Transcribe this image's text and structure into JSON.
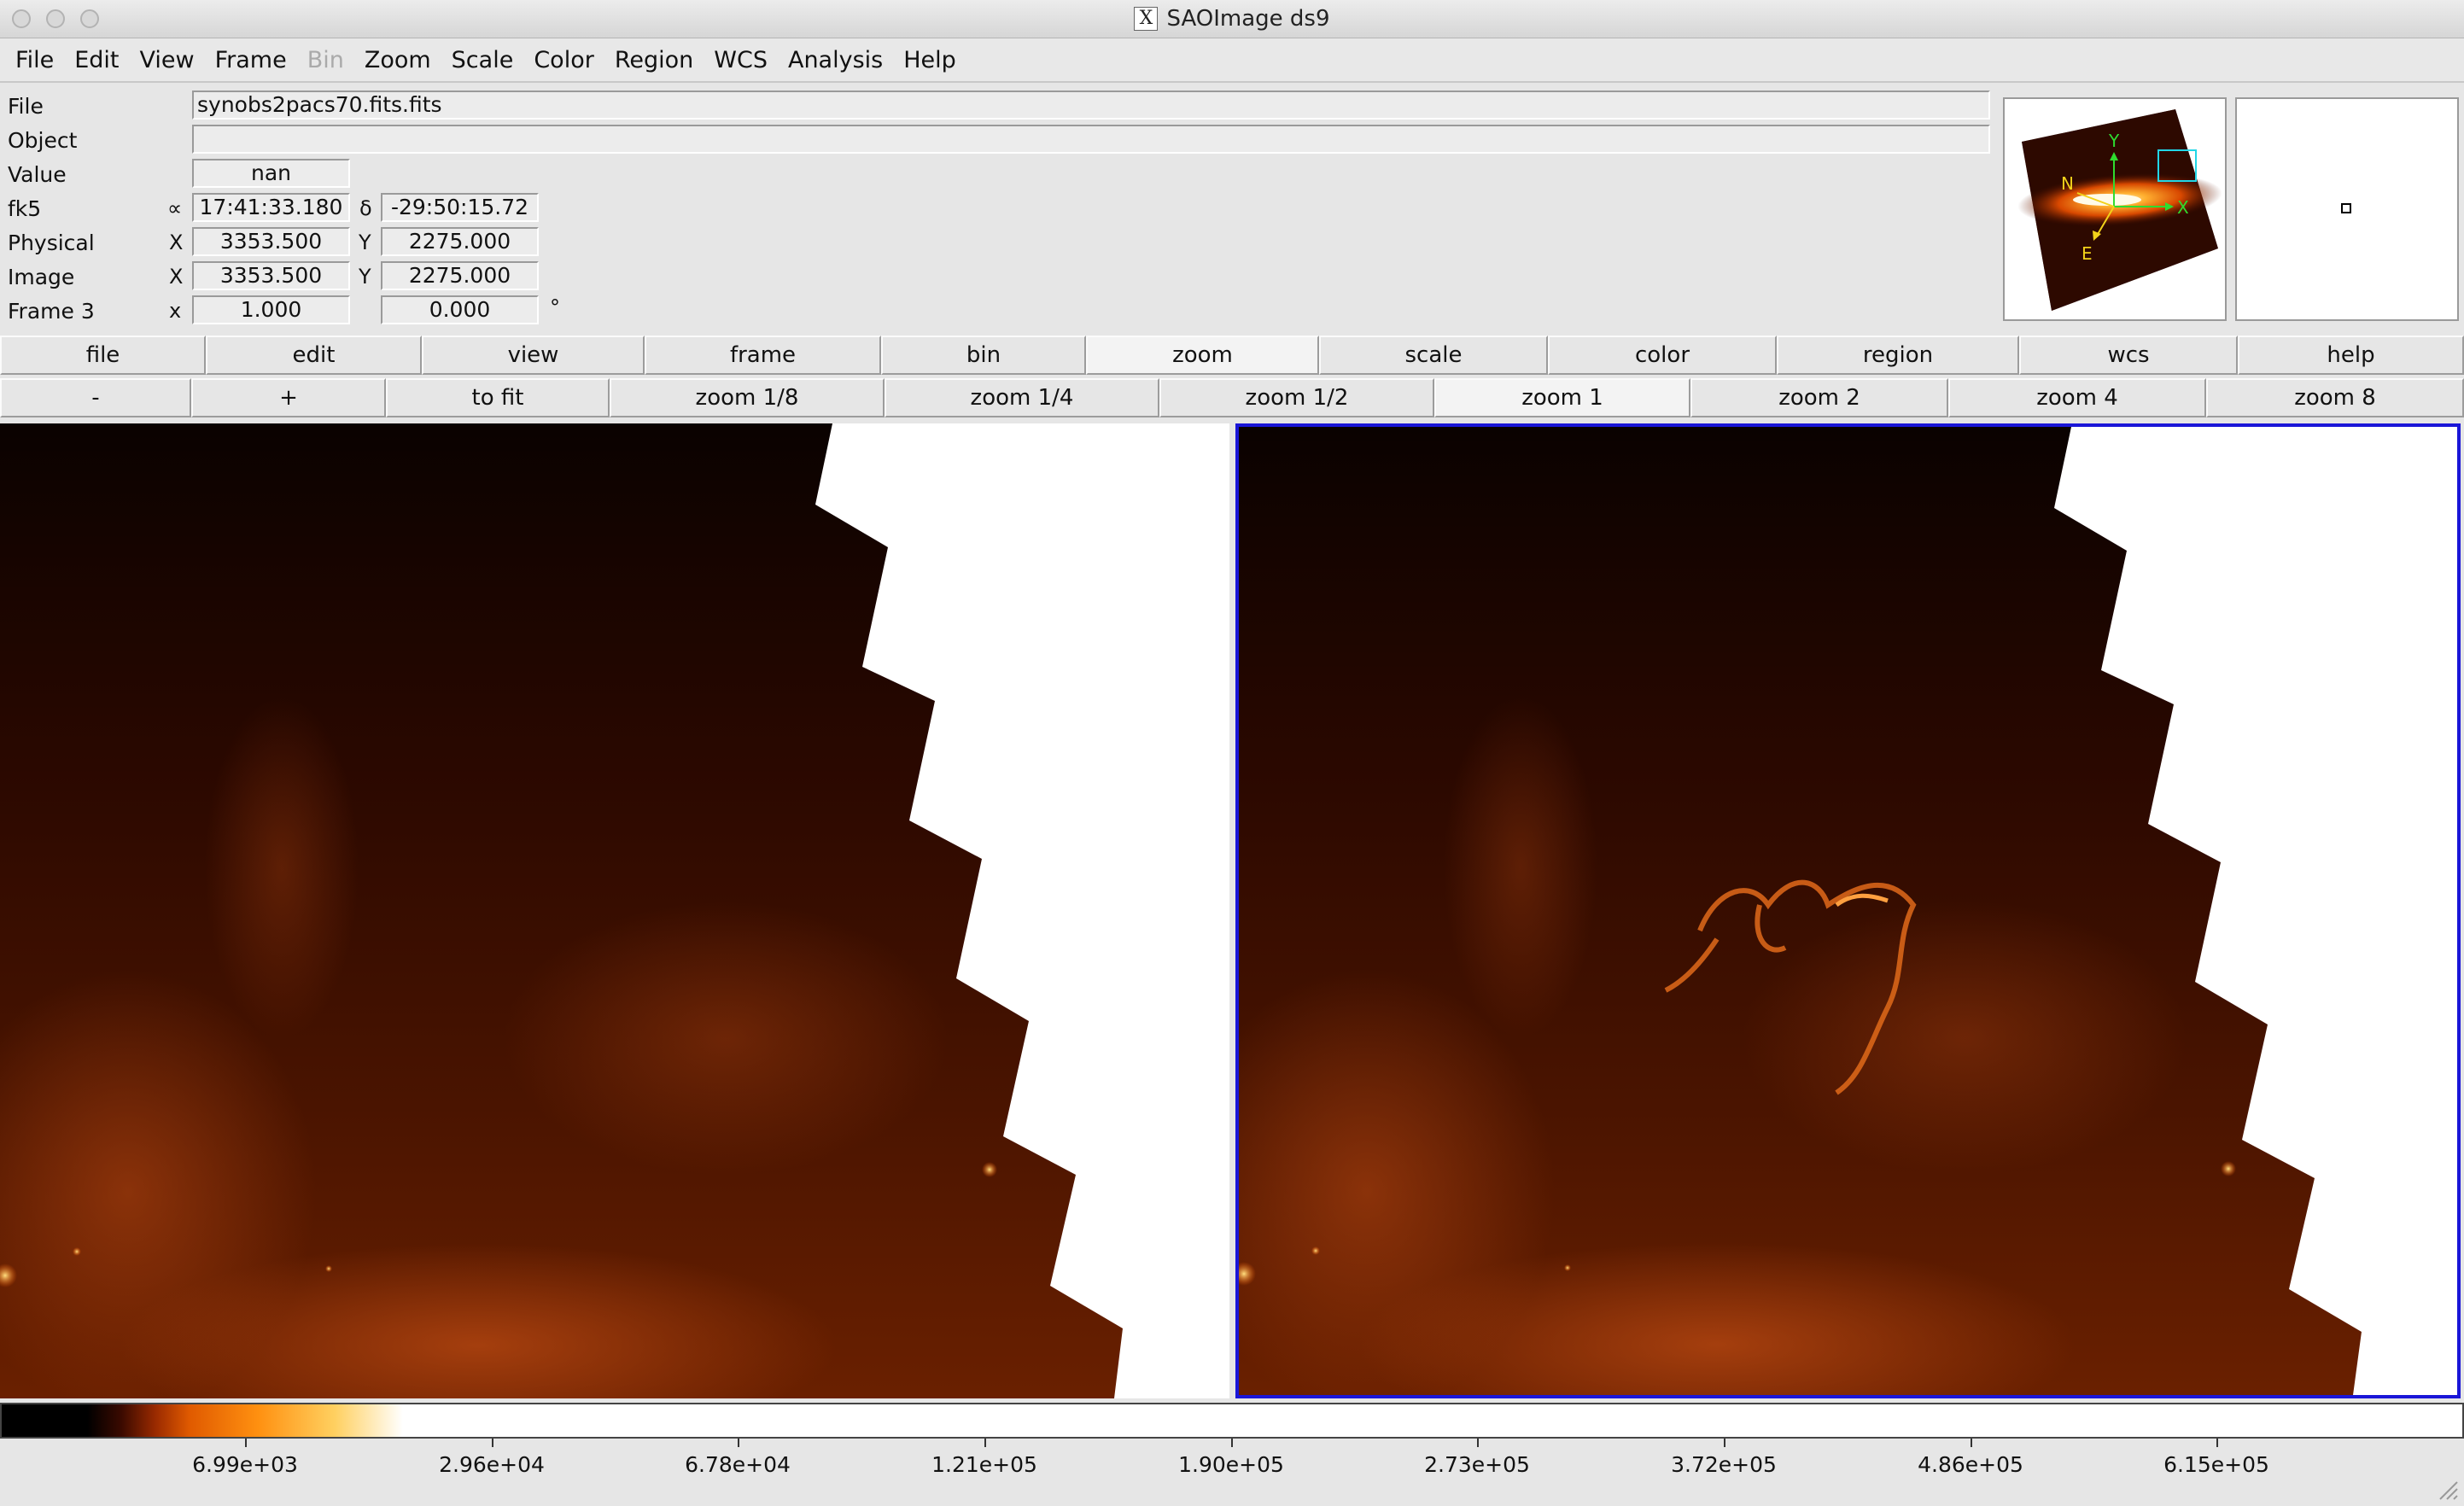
{
  "window": {
    "title": "SAOImage ds9"
  },
  "menubar": [
    "File",
    "Edit",
    "View",
    "Frame",
    "Bin",
    "Zoom",
    "Scale",
    "Color",
    "Region",
    "WCS",
    "Analysis",
    "Help"
  ],
  "menubar_disabled": [
    "Bin"
  ],
  "info": {
    "file_label": "File",
    "file_value": "synobs2pacs70.fits.fits",
    "object_label": "Object",
    "object_value": "",
    "value_label": "Value",
    "value_value": "nan",
    "fk5_label": "fk5",
    "fk5_alpha_sym": "∝",
    "fk5_ra": "17:41:33.180",
    "fk5_delta_sym": "δ",
    "fk5_dec": "-29:50:15.72",
    "physical_label": "Physical",
    "physical_x_sym": "X",
    "physical_x": "3353.500",
    "physical_y_sym": "Y",
    "physical_y": "2275.000",
    "image_label": "Image",
    "image_x_sym": "X",
    "image_x": "3353.500",
    "image_y_sym": "Y",
    "image_y": "2275.000",
    "frame_label": "Frame 3",
    "frame_x_sym": "x",
    "frame_zoom": "1.000",
    "frame_angle": "0.000",
    "frame_deg_sym": "°"
  },
  "panner": {
    "north_label": "N",
    "east_label": "E",
    "x_label": "X",
    "y_label": "Y"
  },
  "buttonbar": {
    "top": [
      "file",
      "edit",
      "view",
      "frame",
      "bin",
      "zoom",
      "scale",
      "color",
      "region",
      "wcs",
      "help"
    ],
    "top_active": "zoom",
    "bottom": [
      "-",
      "+",
      "to fit",
      "zoom 1/8",
      "zoom 1/4",
      "zoom 1/2",
      "zoom 1",
      "zoom 2",
      "zoom 4",
      "zoom 8"
    ],
    "bottom_active": "zoom 1"
  },
  "colorbar": {
    "colormap": "heat",
    "ticks": [
      "6.99e+03",
      "2.96e+04",
      "6.78e+04",
      "1.21e+05",
      "1.90e+05",
      "2.73e+05",
      "3.72e+05",
      "4.86e+05",
      "6.15e+05"
    ]
  },
  "colors": {
    "frame_highlight": "#1a16d8",
    "panner_box": "#22d6e6",
    "compass_wcs": "#f2d21a",
    "compass_image": "#2fdc2f"
  }
}
